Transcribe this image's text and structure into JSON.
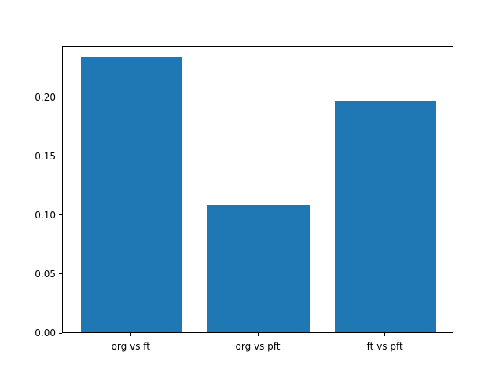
{
  "chart_data": {
    "type": "bar",
    "title": "",
    "xlabel": "",
    "ylabel": "",
    "categories": [
      "org vs ft",
      "org vs pft",
      "ft vs pft"
    ],
    "values": [
      0.233,
      0.108,
      0.196
    ],
    "bar_color": "#1f77b4",
    "ylim": [
      0,
      0.2433
    ],
    "yticks": [
      0.0,
      0.05,
      0.1,
      0.15,
      0.2
    ],
    "ytick_labels": [
      "0.00",
      "0.05",
      "0.10",
      "0.15",
      "0.20"
    ],
    "grid": false,
    "legend_position": "none",
    "background_color": "#ffffff",
    "axis_color": "#000000"
  }
}
